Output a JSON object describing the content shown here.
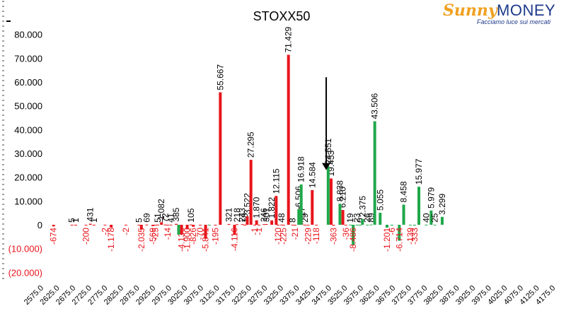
{
  "logo": {
    "brand_a": "Sunny",
    "brand_b": "MONEY",
    "tagline": "Facciamo luce sui mercati"
  },
  "colors": {
    "calls": "#1fa84a",
    "puts": "#e8141b",
    "text": "#000000",
    "neg_label": "#e8141b"
  },
  "chart_data": {
    "type": "bar",
    "title": "STOXX50",
    "ylim": [
      -20000,
      80000
    ],
    "yticks": [
      -20000,
      -10000,
      0,
      10000,
      20000,
      30000,
      40000,
      50000,
      60000,
      70000,
      80000
    ],
    "yticklabels": [
      "(20.000)",
      "(10.000)",
      "0",
      "10.000",
      "20.000",
      "30.000",
      "40.000",
      "50.000",
      "60.000",
      "70.000",
      "80.000"
    ],
    "categories": [
      "2575.0",
      "2625.0",
      "2675.0",
      "2725.0",
      "2775.0",
      "2825.0",
      "2875.0",
      "2925.0",
      "2975.0",
      "3025.0",
      "3075.0",
      "3125.0",
      "3175.0",
      "3225.0",
      "3275.0",
      "3325.0",
      "3375.0",
      "3425.0",
      "3475.0",
      "3525.0",
      "3575.0",
      "3625.0",
      "3675.0",
      "3725.0",
      "3775.0",
      "3825.0",
      "3875.0",
      "3925.0",
      "3975.0",
      "4025.0",
      "4075.0",
      "4125.0",
      "4175.0"
    ],
    "series": [
      {
        "color": "#e8141b",
        "values": [
          {
            "x": 2580,
            "v": -674,
            "l": "-674"
          },
          {
            "x": 2655,
            "v": 5,
            "l": "5"
          },
          {
            "x": 2670,
            "v": 1,
            "l": "1"
          },
          {
            "x": 2712,
            "v": -200,
            "l": "-200"
          },
          {
            "x": 2730,
            "v": 431,
            "l": "431"
          },
          {
            "x": 2745,
            "v": 1,
            "l": "1"
          },
          {
            "x": 2790,
            "v": -2,
            "l": "-2"
          },
          {
            "x": 2815,
            "v": -1178,
            "l": "-1.178"
          },
          {
            "x": 2875,
            "v": -2,
            "l": "-2"
          },
          {
            "x": 2928,
            "v": 5,
            "l": "5"
          },
          {
            "x": 2938,
            "v": -2035,
            "l": "-2.035"
          },
          {
            "x": 2960,
            "v": 69,
            "l": "69"
          },
          {
            "x": 2985,
            "v": -569,
            "l": "-569"
          },
          {
            "x": 2995,
            "v": -25,
            "l": "-25"
          },
          {
            "x": 3005,
            "v": 51,
            "l": "51"
          },
          {
            "x": 3020,
            "v": 1082,
            "l": "1.082"
          },
          {
            "x": 3035,
            "v": 72,
            "l": "72"
          },
          {
            "x": 3045,
            "v": -14,
            "l": "-14"
          },
          {
            "x": 3058,
            "v": 41,
            "l": "41"
          },
          {
            "x": 3080,
            "v": 385,
            "l": "385"
          },
          {
            "x": 3102,
            "v": -4136,
            "l": "-4.136"
          },
          {
            "x": 3125,
            "v": -1900,
            "l": "-1.900"
          },
          {
            "x": 3140,
            "v": 105,
            "l": "105"
          },
          {
            "x": 3150,
            "v": -826,
            "l": "-826"
          },
          {
            "x": 3178,
            "v": -70,
            "l": "-70"
          },
          {
            "x": 3200,
            "v": -5841,
            "l": "-5.841"
          },
          {
            "x": 3240,
            "v": -195,
            "l": "-195"
          },
          {
            "x": 3260,
            "v": 55667,
            "l": "55.667"
          },
          {
            "x": 3295,
            "v": 321,
            "l": "321"
          },
          {
            "x": 3318,
            "v": -4116,
            "l": "-4.116"
          },
          {
            "x": 3328,
            "v": 218,
            "l": "218"
          },
          {
            "x": 3350,
            "v": 243,
            "l": "243"
          },
          {
            "x": 3360,
            "v": 18,
            "l": "18"
          },
          {
            "x": 3370,
            "v": 3522,
            "l": "3.522"
          },
          {
            "x": 3385,
            "v": 27295,
            "l": "27.295"
          },
          {
            "x": 3400,
            "v": -1,
            "l": "-1"
          },
          {
            "x": 3408,
            "v": 1870,
            "l": "1.870"
          },
          {
            "x": 3418,
            "v": -1,
            "l": "-1"
          },
          {
            "x": 3438,
            "v": 246,
            "l": "246"
          },
          {
            "x": 3448,
            "v": 301,
            "l": "301"
          },
          {
            "x": 3470,
            "v": 1822,
            "l": "1.822"
          },
          {
            "x": 3488,
            "v": 12115,
            "l": "12.115"
          },
          {
            "x": 3496,
            "v": -120,
            "l": "-120"
          },
          {
            "x": 3510,
            "v": 48,
            "l": "48"
          },
          {
            "x": 3518,
            "v": -225,
            "l": "-225"
          },
          {
            "x": 3538,
            "v": 71429,
            "l": "71.429"
          },
          {
            "x": 3555,
            "v": 8,
            "l": "8"
          },
          {
            "x": 3565,
            "v": -21,
            "l": "-21"
          },
          {
            "x": 3592,
            "v": 727,
            "l": "727"
          },
          {
            "x": 3605,
            "v": 29,
            "l": "29"
          },
          {
            "x": 3618,
            "v": -229,
            "l": "-229"
          },
          {
            "x": 3635,
            "v": 14584,
            "l": "14.584"
          },
          {
            "x": 3652,
            "v": -118,
            "l": "-118"
          },
          {
            "x": 3712,
            "v": 19453,
            "l": "19.453"
          },
          {
            "x": 3722,
            "v": -363,
            "l": "-363"
          },
          {
            "x": 3760,
            "v": 6210,
            "l": "6.210"
          },
          {
            "x": 3772,
            "v": -36,
            "l": "-36"
          }
        ]
      },
      {
        "color": "#1fa84a",
        "values": [
          {
            "x": 3090,
            "v": -4131,
            "l": ""
          },
          {
            "x": 3215,
            "v": -100,
            "l": ""
          },
          {
            "x": 3580,
            "v": 6506,
            "l": "6.506"
          },
          {
            "x": 3590,
            "v": 16918,
            "l": "16.918"
          },
          {
            "x": 3700,
            "v": 24551,
            "l": "24.551"
          },
          {
            "x": 3748,
            "v": 8838,
            "l": "8.838"
          },
          {
            "x": 3790,
            "v": 19,
            "l": "19"
          },
          {
            "x": 3802,
            "v": -8486,
            "l": "-8.486"
          },
          {
            "x": 3818,
            "v": 23,
            "l": "23"
          },
          {
            "x": 3830,
            "v": 0,
            "l": "0"
          },
          {
            "x": 3840,
            "v": 2375,
            "l": "2.375"
          },
          {
            "x": 3860,
            "v": 26,
            "l": "26"
          },
          {
            "x": 3875,
            "v": 89,
            "l": "89"
          },
          {
            "x": 3890,
            "v": 43506,
            "l": "43.506"
          },
          {
            "x": 3912,
            "v": 5055,
            "l": "5.055"
          },
          {
            "x": 3940,
            "v": -1201,
            "l": "-1.201"
          },
          {
            "x": 3960,
            "v": -6,
            "l": "-6"
          },
          {
            "x": 3990,
            "v": -6714,
            "l": "-6.714"
          },
          {
            "x": 4008,
            "v": 8458,
            "l": "8.458"
          },
          {
            "x": 4035,
            "v": -139,
            "l": "-139"
          },
          {
            "x": 4052,
            "v": -333,
            "l": "-333"
          },
          {
            "x": 4070,
            "v": 15977,
            "l": "15.977"
          },
          {
            "x": 4100,
            "v": 40,
            "l": "40"
          },
          {
            "x": 4120,
            "v": 5979,
            "l": "5.979"
          },
          {
            "x": 4135,
            "v": 25,
            "l": "25"
          },
          {
            "x": 4165,
            "v": 3299,
            "l": "3.299"
          }
        ]
      }
    ],
    "annotations": [
      {
        "type": "arrow-down",
        "x": 3692,
        "y_from": 62000,
        "y_to": 23000
      }
    ],
    "grid": false,
    "legend": "none"
  }
}
